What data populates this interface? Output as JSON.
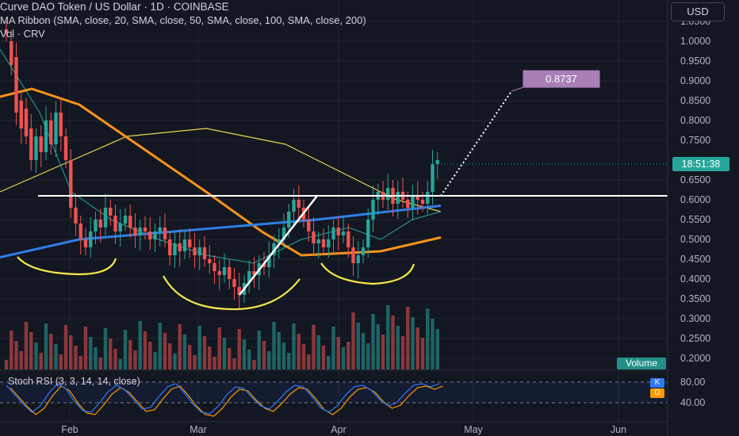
{
  "header": {
    "title": "Curve DAO Token / US Dollar · 1D · COINBASE",
    "ma_ribbon": "MA Ribbon (SMA, close, 20, SMA, close, 50, SMA, close, 100, SMA, close, 200)",
    "volume": "Vol · CRV"
  },
  "currency_button": "USD",
  "colors": {
    "background": "#131722",
    "up": "#26a69a",
    "down": "#ef5350",
    "sma20": "#26a69a",
    "sma50": "#f7931a",
    "sma100": "#e8d44d",
    "sma200": "#2f7ee6",
    "annotation": "#f5e84a",
    "target": "#a87fb7",
    "stoch_k": "#3179f5",
    "stoch_d": "#ff9800"
  },
  "chart_data": {
    "type": "candlestick",
    "symbol": "Curve DAO Token / US Dollar",
    "timeframe": "1D",
    "exchange": "COINBASE",
    "x_ticks": [
      "Feb",
      "Mar",
      "Apr",
      "May",
      "Jun"
    ],
    "y_ticks": [
      "1.0500",
      "1.0000",
      "0.9500",
      "0.9000",
      "0.8500",
      "0.8000",
      "0.7500",
      "0.6500",
      "0.6000",
      "0.5500",
      "0.5000",
      "0.4500",
      "0.4000",
      "0.3500",
      "0.3000",
      "0.2500",
      "0.2000"
    ],
    "ylim": [
      0.17,
      1.06
    ],
    "last_price_label": "18:51:38",
    "last_price": 0.69,
    "target_label": "0.8737",
    "target_price": 0.8737,
    "neckline_price": 0.61,
    "volume_label": "Volume",
    "price_path": [
      [
        1.03,
        1.02
      ],
      [
        1.0,
        0.94
      ],
      [
        0.96,
        0.82
      ],
      [
        0.85,
        0.78
      ],
      [
        0.83,
        0.76
      ],
      [
        0.78,
        0.7
      ],
      [
        0.7,
        0.76
      ],
      [
        0.76,
        0.72
      ],
      [
        0.72,
        0.8
      ],
      [
        0.8,
        0.74
      ],
      [
        0.74,
        0.82
      ],
      [
        0.82,
        0.76
      ],
      [
        0.76,
        0.7
      ],
      [
        0.7,
        0.58
      ],
      [
        0.58,
        0.54
      ],
      [
        0.54,
        0.5
      ],
      [
        0.5,
        0.48
      ],
      [
        0.48,
        0.52
      ],
      [
        0.52,
        0.55
      ],
      [
        0.55,
        0.53
      ],
      [
        0.53,
        0.58
      ],
      [
        0.58,
        0.56
      ],
      [
        0.56,
        0.52
      ],
      [
        0.52,
        0.54
      ],
      [
        0.54,
        0.56
      ],
      [
        0.56,
        0.53
      ],
      [
        0.53,
        0.51
      ],
      [
        0.51,
        0.53
      ],
      [
        0.53,
        0.52
      ],
      [
        0.52,
        0.5
      ],
      [
        0.5,
        0.52
      ],
      [
        0.52,
        0.53
      ],
      [
        0.53,
        0.5
      ],
      [
        0.5,
        0.46
      ],
      [
        0.46,
        0.49
      ],
      [
        0.49,
        0.47
      ],
      [
        0.47,
        0.5
      ],
      [
        0.5,
        0.48
      ],
      [
        0.48,
        0.46
      ],
      [
        0.46,
        0.48
      ],
      [
        0.48,
        0.45
      ],
      [
        0.45,
        0.44
      ],
      [
        0.44,
        0.42
      ],
      [
        0.42,
        0.41
      ],
      [
        0.41,
        0.43
      ],
      [
        0.43,
        0.4
      ],
      [
        0.4,
        0.38
      ],
      [
        0.38,
        0.36
      ],
      [
        0.36,
        0.39
      ],
      [
        0.39,
        0.42
      ],
      [
        0.42,
        0.41
      ],
      [
        0.41,
        0.44
      ],
      [
        0.44,
        0.43
      ],
      [
        0.43,
        0.46
      ],
      [
        0.46,
        0.49
      ],
      [
        0.49,
        0.5
      ],
      [
        0.5,
        0.53
      ],
      [
        0.53,
        0.57
      ],
      [
        0.57,
        0.6
      ],
      [
        0.6,
        0.58
      ],
      [
        0.58,
        0.55
      ],
      [
        0.55,
        0.52
      ],
      [
        0.52,
        0.49
      ],
      [
        0.49,
        0.5
      ],
      [
        0.5,
        0.48
      ],
      [
        0.48,
        0.5
      ],
      [
        0.5,
        0.53
      ],
      [
        0.53,
        0.51
      ],
      [
        0.51,
        0.52
      ],
      [
        0.52,
        0.48
      ],
      [
        0.48,
        0.44
      ],
      [
        0.44,
        0.46
      ],
      [
        0.46,
        0.48
      ],
      [
        0.48,
        0.55
      ],
      [
        0.55,
        0.6
      ],
      [
        0.6,
        0.62
      ],
      [
        0.62,
        0.6
      ],
      [
        0.6,
        0.63
      ],
      [
        0.63,
        0.59
      ],
      [
        0.59,
        0.62
      ],
      [
        0.62,
        0.6
      ],
      [
        0.6,
        0.58
      ],
      [
        0.58,
        0.61
      ],
      [
        0.61,
        0.6
      ],
      [
        0.6,
        0.59
      ],
      [
        0.59,
        0.62
      ],
      [
        0.62,
        0.69
      ],
      [
        0.69,
        0.7
      ]
    ],
    "stoch_rsi": {
      "label": "Stoch RSI (3, 3, 14, 14, close)",
      "ticks": [
        "80.00",
        "40.00"
      ],
      "k_label": "K",
      "d_label": "D"
    }
  }
}
